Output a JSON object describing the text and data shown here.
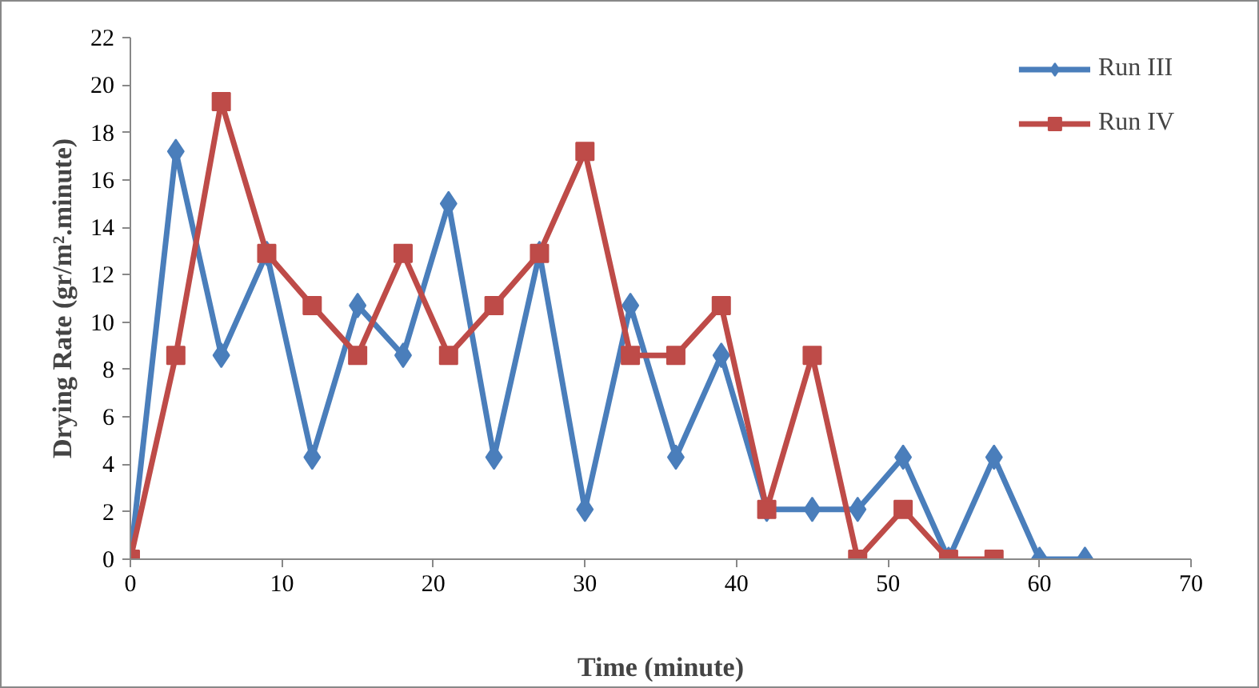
{
  "chart_data": {
    "type": "line",
    "xlabel": "Time (minute)",
    "ylabel": "Drying Rate (gr/m².minute)",
    "xlim": [
      0,
      70
    ],
    "xticks": [
      0,
      10,
      20,
      30,
      40,
      50,
      60,
      70
    ],
    "ylim": [
      0,
      22
    ],
    "yticks": [
      0,
      2,
      4,
      6,
      8,
      10,
      12,
      14,
      16,
      18,
      20,
      22
    ],
    "grid": false,
    "legend": "top right",
    "line_style": "solid",
    "series": [
      {
        "name": "Run III",
        "color": "#4a7ebb",
        "marker": "diamond",
        "x": [
          0,
          3,
          6,
          9,
          12,
          15,
          18,
          21,
          24,
          27,
          30,
          33,
          36,
          39,
          42,
          45,
          48,
          51,
          54,
          57,
          60,
          63
        ],
        "values": [
          0,
          17.2,
          8.6,
          12.9,
          4.3,
          10.7,
          8.6,
          15.0,
          4.3,
          12.9,
          2.1,
          10.7,
          4.3,
          8.6,
          2.1,
          2.1,
          2.1,
          4.3,
          0,
          4.3,
          0,
          0
        ]
      },
      {
        "name": "Run IV",
        "color": "#be4b48",
        "marker": "square",
        "x": [
          0,
          3,
          6,
          9,
          12,
          15,
          18,
          21,
          24,
          27,
          30,
          33,
          36,
          39,
          42,
          45,
          48,
          51,
          54,
          57
        ],
        "values": [
          0,
          8.6,
          19.3,
          12.9,
          10.7,
          8.6,
          12.9,
          8.6,
          10.7,
          12.9,
          17.2,
          8.6,
          8.6,
          10.7,
          2.1,
          8.6,
          0,
          2.1,
          0,
          0
        ]
      }
    ]
  }
}
